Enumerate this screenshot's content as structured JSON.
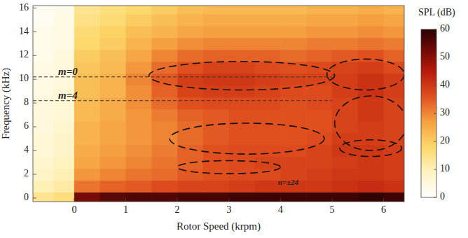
{
  "chart_data": {
    "type": "heatmap",
    "x_label": "Rotor Speed (krpm)",
    "y_label": "Frequency (kHz)",
    "xlim": [
      -0.8,
      6.4
    ],
    "ylim": [
      -0.3,
      16.2
    ],
    "xticks": [
      0,
      1,
      2,
      3,
      4,
      5,
      6
    ],
    "yticks": [
      0,
      2,
      4,
      6,
      8,
      10,
      12,
      14,
      16
    ],
    "x_bins": [
      -0.8,
      -0.4,
      0,
      0.5,
      1,
      1.5,
      2,
      2.5,
      3,
      3.5,
      4,
      4.5,
      5,
      5.5,
      6,
      6.4
    ],
    "y_bins": [
      -0.3,
      0.5,
      1.5,
      2.5,
      3.5,
      4.5,
      5.5,
      6.5,
      7.5,
      8.5,
      9.5,
      10.5,
      11.5,
      12.5,
      13.5,
      14.5,
      15.5,
      16.2
    ],
    "cells": [
      [
        14,
        16,
        52,
        55,
        56,
        56,
        57,
        57,
        58,
        58,
        58,
        58,
        58,
        59,
        58
      ],
      [
        10,
        12,
        32,
        34,
        35,
        37,
        38,
        38,
        39,
        40,
        40,
        40,
        41,
        42,
        41
      ],
      [
        8,
        10,
        28,
        30,
        32,
        33,
        35,
        36,
        37,
        37,
        38,
        39,
        40,
        40,
        39
      ],
      [
        7,
        9,
        26,
        28,
        30,
        32,
        34,
        36,
        37,
        38,
        38,
        38,
        39,
        40,
        39
      ],
      [
        6,
        8,
        25,
        27,
        29,
        31,
        34,
        36,
        37,
        37,
        37,
        38,
        40,
        40,
        39
      ],
      [
        6,
        8,
        24,
        26,
        28,
        30,
        33,
        35,
        36,
        36,
        36,
        37,
        39,
        39,
        38
      ],
      [
        5,
        7,
        24,
        26,
        28,
        30,
        33,
        35,
        36,
        36,
        36,
        36,
        38,
        39,
        38
      ],
      [
        5,
        6,
        23,
        25,
        28,
        31,
        34,
        35,
        36,
        36,
        36,
        36,
        38,
        40,
        38
      ],
      [
        5,
        6,
        23,
        25,
        29,
        33,
        36,
        37,
        37,
        37,
        36,
        37,
        38,
        40,
        38
      ],
      [
        4,
        6,
        22,
        24,
        29,
        34,
        38,
        39,
        39,
        38,
        37,
        37,
        39,
        41,
        39
      ],
      [
        4,
        5,
        22,
        24,
        30,
        35,
        39,
        40,
        40,
        39,
        38,
        38,
        39,
        41,
        39
      ],
      [
        4,
        5,
        21,
        23,
        28,
        33,
        36,
        38,
        38,
        37,
        36,
        37,
        38,
        39,
        37
      ],
      [
        3,
        5,
        20,
        22,
        26,
        30,
        33,
        34,
        34,
        34,
        33,
        34,
        35,
        36,
        34
      ],
      [
        3,
        4,
        18,
        20,
        24,
        27,
        29,
        30,
        30,
        30,
        30,
        31,
        31,
        32,
        31
      ],
      [
        3,
        4,
        17,
        19,
        22,
        24,
        26,
        27,
        27,
        27,
        27,
        28,
        28,
        29,
        28
      ],
      [
        2,
        4,
        15,
        17,
        20,
        22,
        24,
        25,
        25,
        25,
        25,
        26,
        26,
        27,
        26
      ],
      [
        2,
        3,
        14,
        16,
        18,
        20,
        22,
        23,
        23,
        23,
        23,
        24,
        24,
        25,
        24
      ]
    ],
    "colorbar": {
      "label": "SPL (dB)",
      "range": [
        0,
        60
      ],
      "ticks": [
        0,
        10,
        20,
        30,
        40,
        50,
        60
      ]
    },
    "annotations": [
      {
        "text": "m=0",
        "y": 10.2,
        "x": [
          -0.8,
          5.0
        ]
      },
      {
        "text": "m=4",
        "y": 8.2,
        "x": [
          -0.8,
          5.0
        ]
      },
      {
        "text": "n=±24",
        "x": 4.15,
        "y": 1.25
      }
    ],
    "regions": [
      {
        "cx": 3.25,
        "cy": 10.3,
        "rx": 1.8,
        "ry": 1.2
      },
      {
        "cx": 5.65,
        "cy": 10.4,
        "rx": 0.75,
        "ry": 1.3
      },
      {
        "cx": 3.35,
        "cy": 5.0,
        "rx": 1.5,
        "ry": 1.3
      },
      {
        "cx": 5.75,
        "cy": 6.3,
        "rx": 0.7,
        "ry": 2.3
      },
      {
        "cx": 5.75,
        "cy": 4.2,
        "rx": 0.6,
        "ry": 0.7
      },
      {
        "cx": 3.0,
        "cy": 2.6,
        "rx": 1.0,
        "ry": 0.55
      }
    ]
  }
}
